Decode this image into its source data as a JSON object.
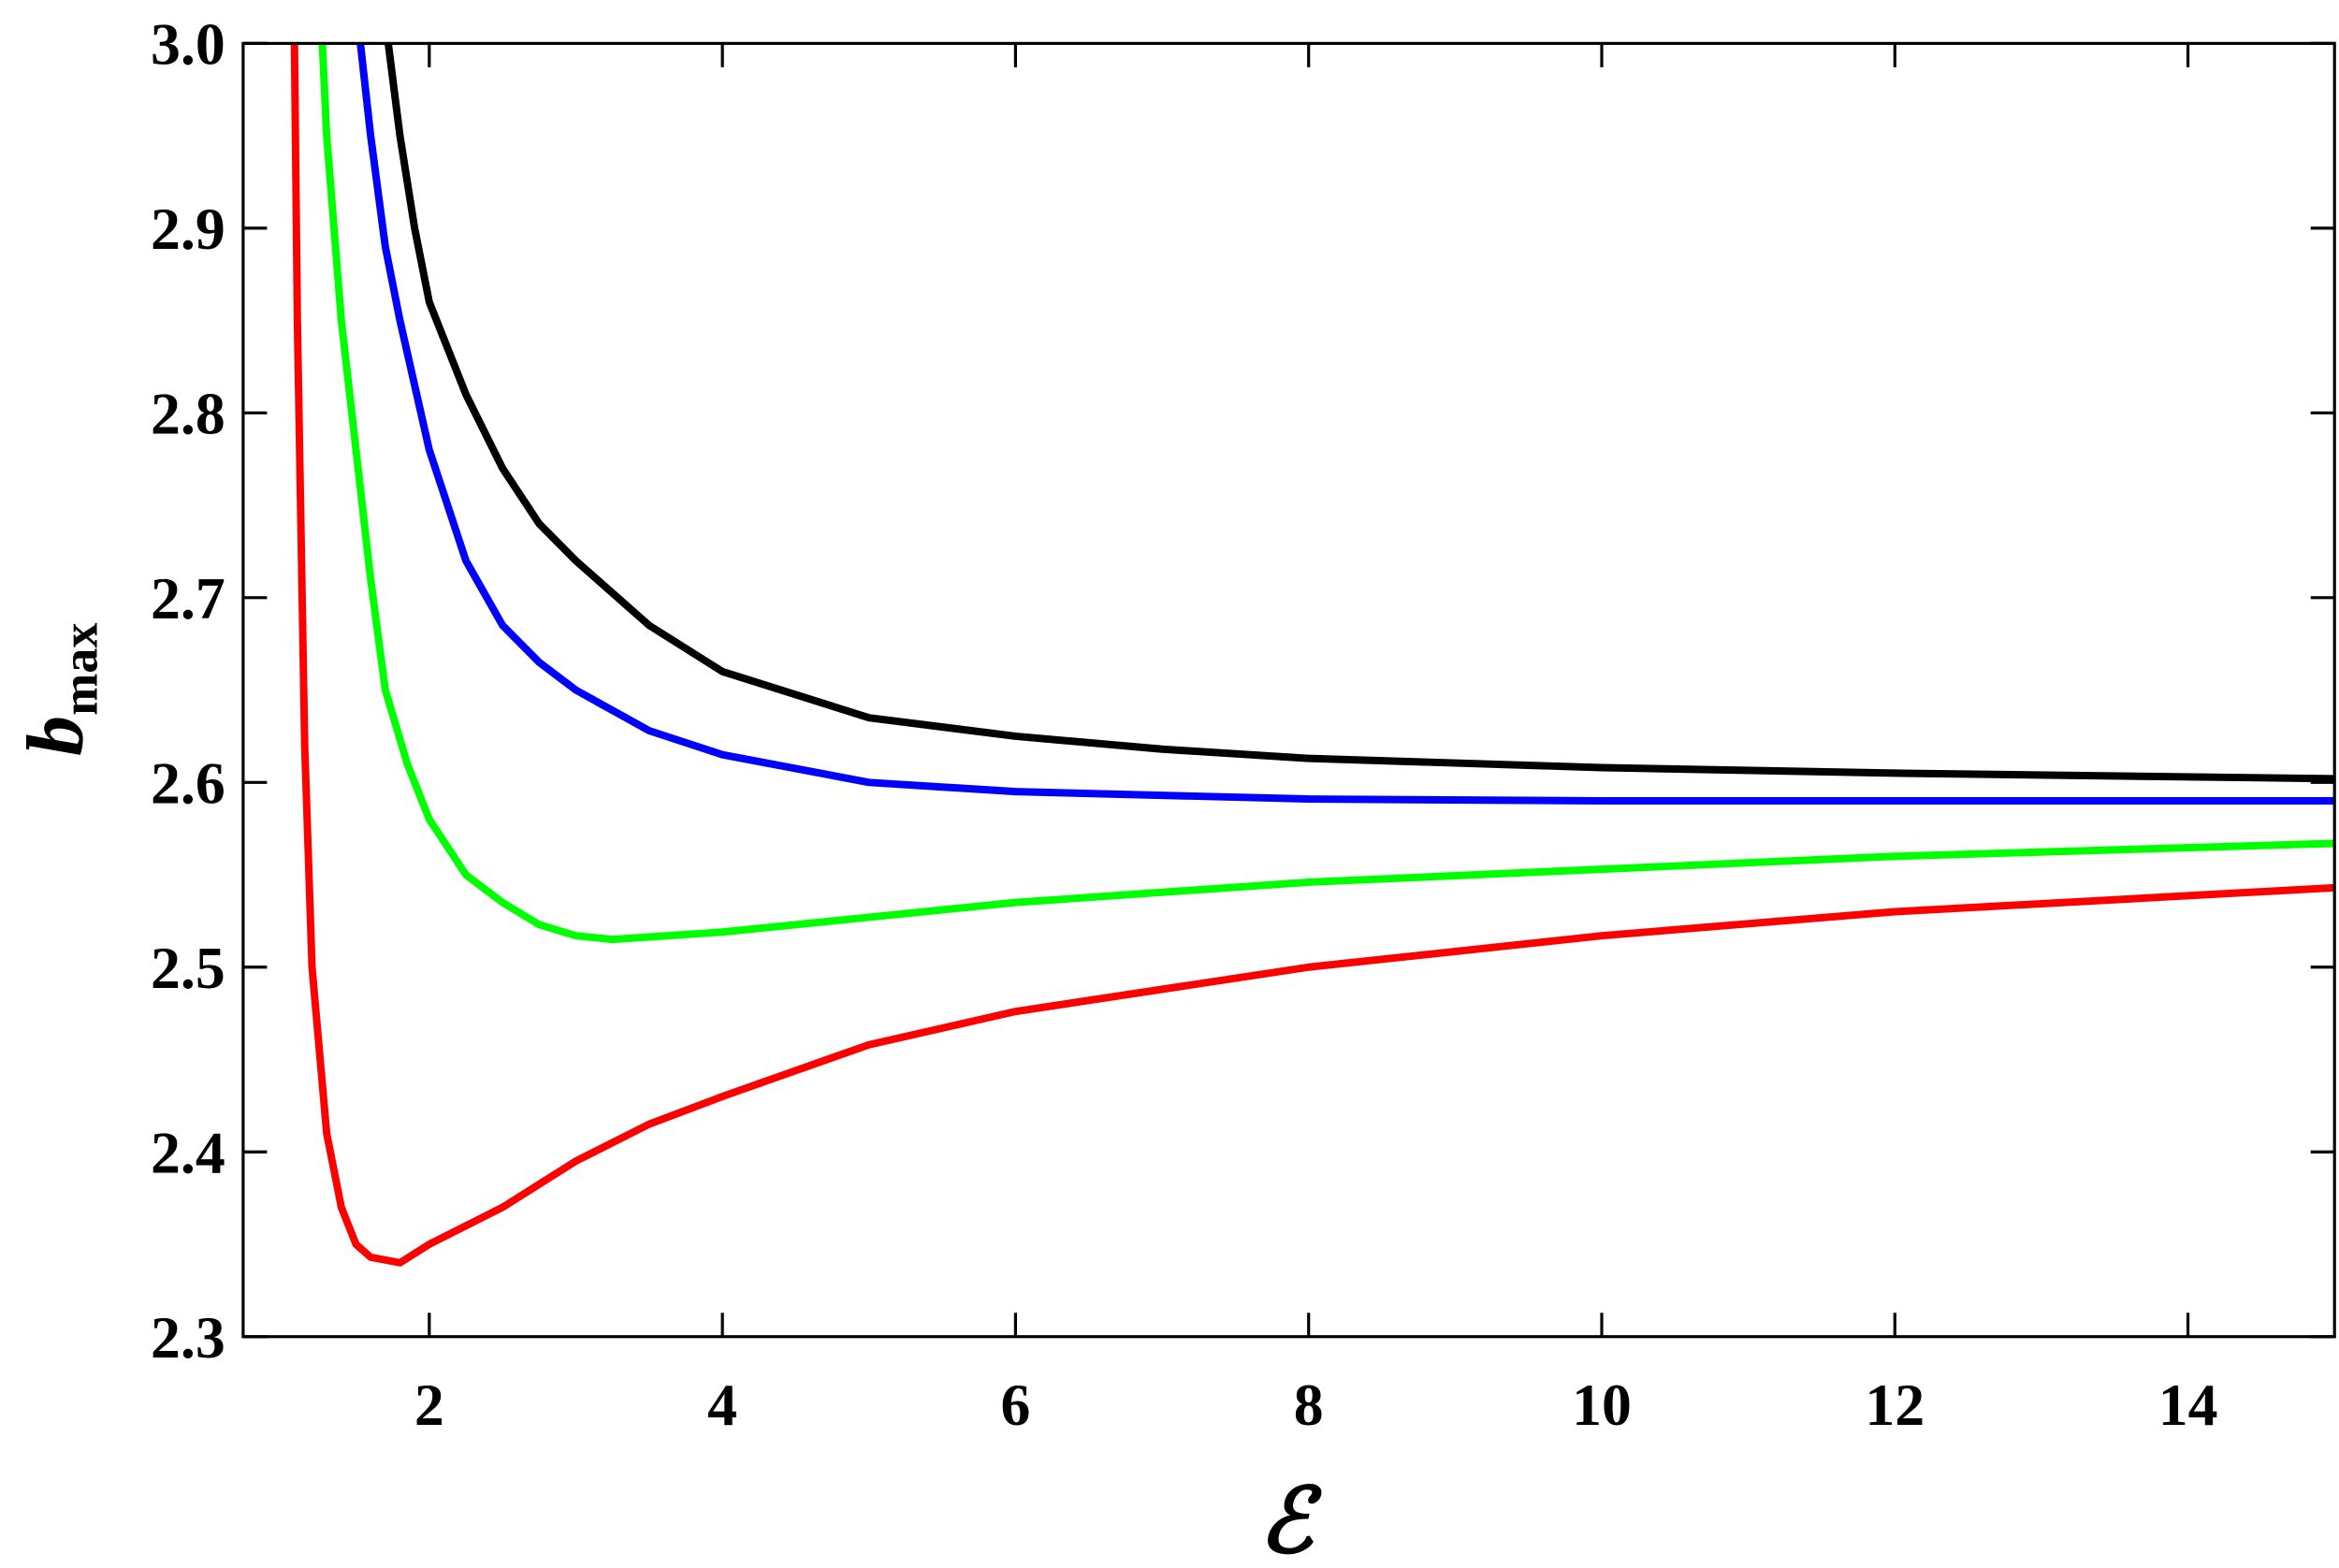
{
  "chart_data": {
    "type": "line",
    "xlabel": "ℰ",
    "ylabel": "b",
    "ylabel_subscript": "max",
    "xlim": [
      0.73,
      15
    ],
    "ylim": [
      2.3,
      3.0
    ],
    "xticks": [
      2,
      4,
      6,
      8,
      10,
      12,
      14
    ],
    "yticks": [
      2.3,
      2.4,
      2.5,
      2.6,
      2.7,
      2.8,
      2.9,
      {
        "value": 3,
        "label": "3.0"
      }
    ],
    "series": [
      {
        "color": "#000000",
        "x": [
          1.72,
          1.8,
          1.9,
          2,
          2.25,
          2.5,
          2.75,
          3,
          3.5,
          4,
          5,
          6,
          7,
          8,
          10,
          12,
          15
        ],
        "values": [
          3.0,
          2.95,
          2.9,
          2.86,
          2.81,
          2.77,
          2.74,
          2.72,
          2.685,
          2.66,
          2.635,
          2.625,
          2.618,
          2.613,
          2.608,
          2.605,
          2.602
        ]
      },
      {
        "color": "#0000ff",
        "x": [
          1.53,
          1.6,
          1.7,
          1.8,
          2,
          2.25,
          2.5,
          2.75,
          3,
          3.5,
          4,
          5,
          6,
          8,
          10,
          12,
          15
        ],
        "values": [
          3.0,
          2.95,
          2.89,
          2.85,
          2.78,
          2.72,
          2.685,
          2.665,
          2.65,
          2.628,
          2.615,
          2.6,
          2.595,
          2.591,
          2.59,
          2.59,
          2.59
        ]
      },
      {
        "color": "#00ff00",
        "x": [
          1.27,
          1.3,
          1.4,
          1.5,
          1.6,
          1.7,
          1.85,
          2,
          2.25,
          2.5,
          2.75,
          3,
          3.25,
          4,
          5,
          6,
          8,
          10,
          12,
          15
        ],
        "values": [
          3.0,
          2.95,
          2.85,
          2.78,
          2.71,
          2.65,
          2.61,
          2.58,
          2.55,
          2.535,
          2.523,
          2.517,
          2.515,
          2.519,
          2.527,
          2.535,
          2.546,
          2.553,
          2.56,
          2.567
        ]
      },
      {
        "color": "#ff0000",
        "x": [
          1.08,
          1.1,
          1.15,
          1.2,
          1.3,
          1.4,
          1.5,
          1.6,
          1.8,
          2,
          2.5,
          3,
          3.5,
          4,
          5,
          6,
          8,
          10,
          12,
          15
        ],
        "values": [
          3.0,
          2.85,
          2.62,
          2.5,
          2.41,
          2.37,
          2.35,
          2.343,
          2.34,
          2.35,
          2.37,
          2.395,
          2.415,
          2.43,
          2.458,
          2.476,
          2.5,
          2.517,
          2.53,
          2.543
        ]
      }
    ]
  }
}
